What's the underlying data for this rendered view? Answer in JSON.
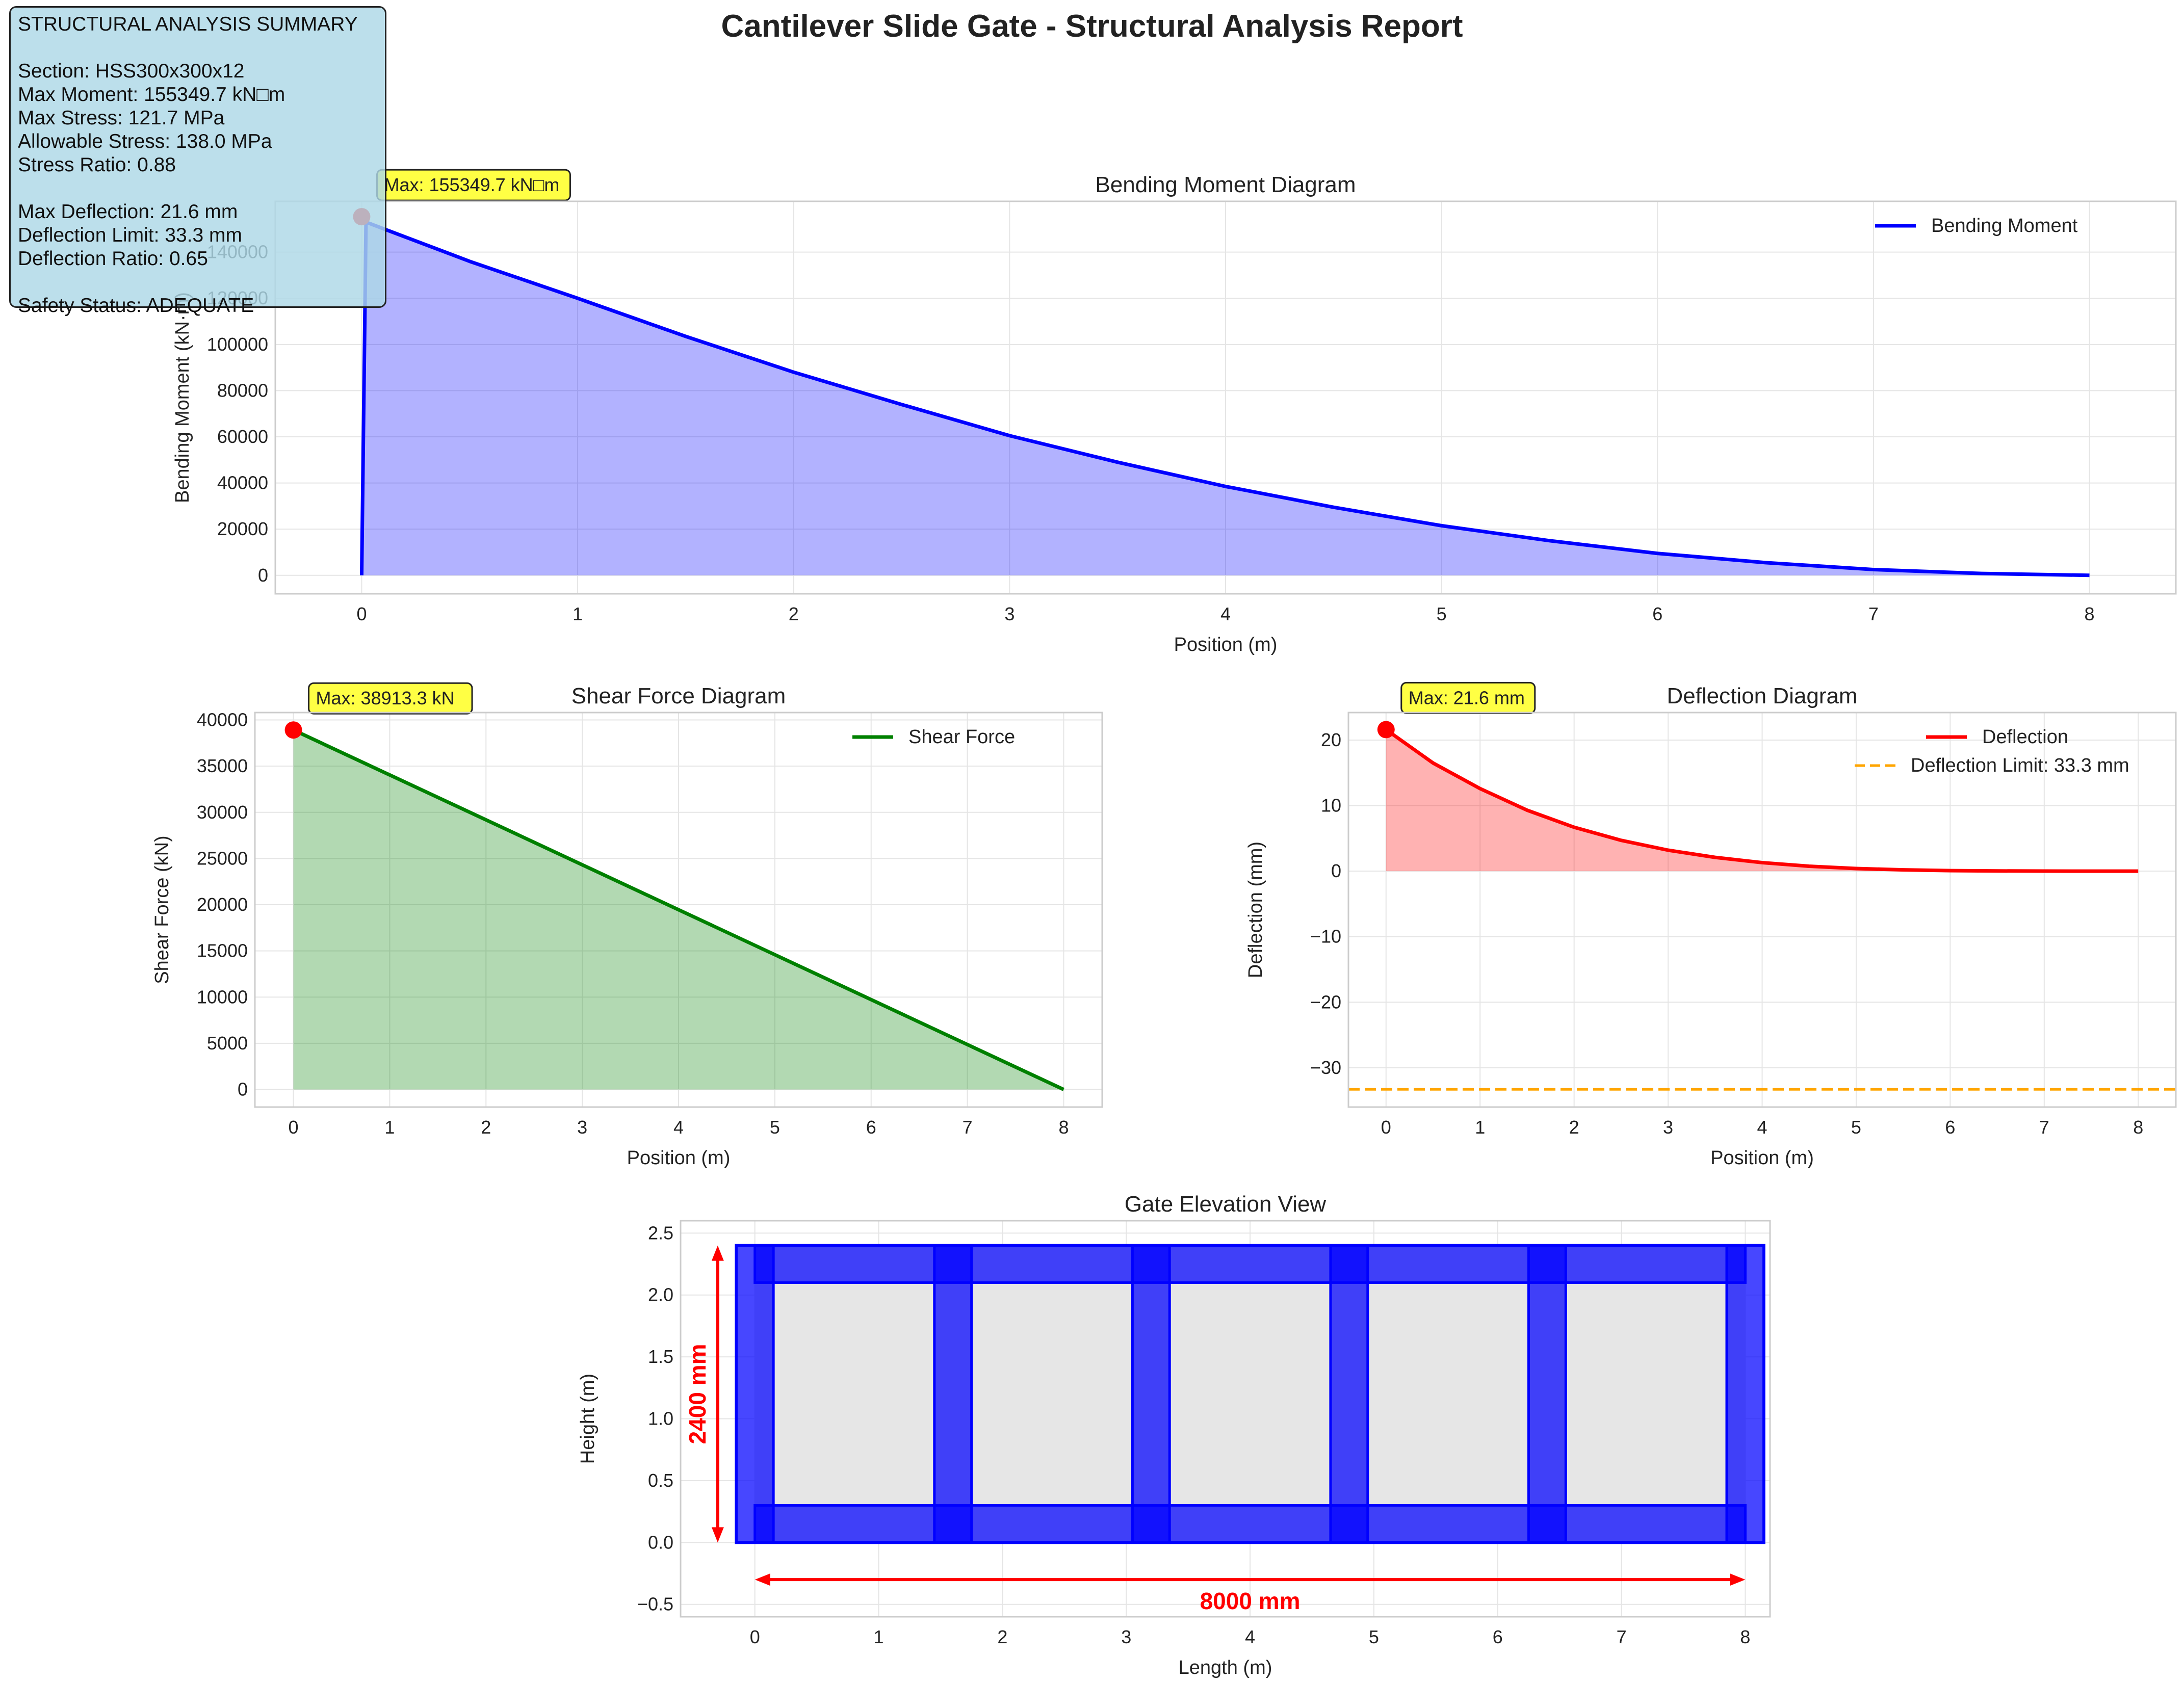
{
  "figure": {
    "title": "Cantilever Slide Gate - Structural Analysis Report"
  },
  "summary": {
    "heading": "STRUCTURAL ANALYSIS SUMMARY",
    "section": "Section: HSS300x300x12",
    "max_moment": "Max Moment: 155349.7 kN□m",
    "max_stress": "Max Stress: 121.7 MPa",
    "allowable_stress": "Allowable Stress: 138.0 MPa",
    "stress_ratio": "Stress Ratio: 0.88",
    "max_deflection": "Max Deflection: 21.6 mm",
    "deflection_limit": "Deflection Limit: 33.3 mm",
    "deflection_ratio": "Deflection Ratio: 0.65",
    "safety_status": "Safety Status: ADEQUATE"
  },
  "chart_data": [
    {
      "id": "moment",
      "type": "area",
      "title": "Bending Moment Diagram",
      "xlabel": "Position (m)",
      "ylabel": "Bending Moment (kN·m)",
      "xlim": [
        -0.4,
        8.4
      ],
      "ylim": [
        -8000,
        162000
      ],
      "xticks": [
        0,
        1,
        2,
        3,
        4,
        5,
        6,
        7,
        8
      ],
      "yticks": [
        0,
        20000,
        40000,
        60000,
        80000,
        100000,
        120000,
        140000
      ],
      "grid": true,
      "legend_position": "top-right",
      "color": "#0000ff",
      "fill_color": "#0000ff",
      "series": [
        {
          "name": "Bending Moment",
          "x": [
            0,
            0.02,
            0.5,
            1,
            1.5,
            2,
            2.5,
            3,
            3.5,
            4,
            4.5,
            5,
            5.5,
            6,
            6.5,
            7,
            7.5,
            8
          ],
          "y": [
            0,
            153000,
            136000,
            120000,
            103500,
            88000,
            74000,
            60500,
            49000,
            38500,
            29500,
            21500,
            15000,
            9500,
            5500,
            2500,
            800,
            0
          ]
        }
      ],
      "marker": {
        "x": 0,
        "y": 155349.7,
        "color": "#ff0000"
      },
      "annotation": "Max: 155349.7 kN□m"
    },
    {
      "id": "shear",
      "type": "area",
      "title": "Shear Force Diagram",
      "xlabel": "Position (m)",
      "ylabel": "Shear Force (kN)",
      "xlim": [
        -0.4,
        8.4
      ],
      "ylim": [
        -1900,
        40800
      ],
      "xticks": [
        0,
        1,
        2,
        3,
        4,
        5,
        6,
        7,
        8
      ],
      "yticks": [
        0,
        5000,
        10000,
        15000,
        20000,
        25000,
        30000,
        35000,
        40000
      ],
      "grid": true,
      "legend_position": "top-right",
      "color": "#008000",
      "fill_color": "#008000",
      "series": [
        {
          "name": "Shear Force",
          "x": [
            0,
            8
          ],
          "y": [
            38913.3,
            0
          ]
        }
      ],
      "marker": {
        "x": 0,
        "y": 38913.3,
        "color": "#ff0000"
      },
      "annotation": "Max: 38913.3 kN"
    },
    {
      "id": "deflection",
      "type": "area",
      "title": "Deflection Diagram",
      "xlabel": "Position (m)",
      "ylabel": "Deflection (mm)",
      "xlim": [
        -0.4,
        8.4
      ],
      "ylim": [
        -36,
        24.2
      ],
      "xticks": [
        0,
        1,
        2,
        3,
        4,
        5,
        6,
        7,
        8
      ],
      "yticks": [
        -30,
        -20,
        -10,
        0,
        10,
        20
      ],
      "grid": true,
      "legend_position": "top-right",
      "color": "#ff0000",
      "fill_color": "#ff0000",
      "series": [
        {
          "name": "Deflection",
          "x": [
            0,
            0.5,
            1,
            1.5,
            2,
            2.5,
            3,
            3.5,
            4,
            4.5,
            5,
            5.5,
            6,
            6.5,
            7,
            7.5,
            8
          ],
          "y": [
            21.6,
            16.5,
            12.6,
            9.3,
            6.7,
            4.7,
            3.2,
            2.1,
            1.3,
            0.75,
            0.4,
            0.2,
            0.08,
            0.03,
            0.01,
            0,
            0
          ]
        },
        {
          "name": "Deflection Limit: 33.3 mm",
          "y_const": -33.3,
          "color": "#ffa500",
          "dashed": true
        }
      ],
      "marker": {
        "x": 0,
        "y": 21.6,
        "color": "#ff0000"
      },
      "annotation": "Max: 21.6 mm"
    },
    {
      "id": "elevation",
      "type": "diagram",
      "title": "Gate Elevation View",
      "xlabel": "Length (m)",
      "ylabel": "Height (m)",
      "xlim": [
        -0.6,
        8.2
      ],
      "ylim": [
        -0.6,
        2.6
      ],
      "xticks": [
        0,
        1,
        2,
        3,
        4,
        5,
        6,
        7,
        8
      ],
      "yticks": [
        -0.5,
        0.0,
        0.5,
        1.0,
        1.5,
        2.0,
        2.5
      ],
      "ytick_labels": [
        "−0.5",
        "0.0",
        "0.5",
        "1.0",
        "1.5",
        "2.0",
        "2.5"
      ],
      "grid": true,
      "frame_color": "#0000ff",
      "panel_color": "#e6e6e6",
      "gate_length_m": 8.0,
      "gate_height_m": 2.4,
      "member_size_m": 0.3,
      "posts_x_m": [
        0,
        1.6,
        3.2,
        4.8,
        6.4,
        8.0
      ],
      "dimension_color": "#ff0000",
      "length_label": "8000 mm",
      "height_label": "2400 mm"
    }
  ]
}
